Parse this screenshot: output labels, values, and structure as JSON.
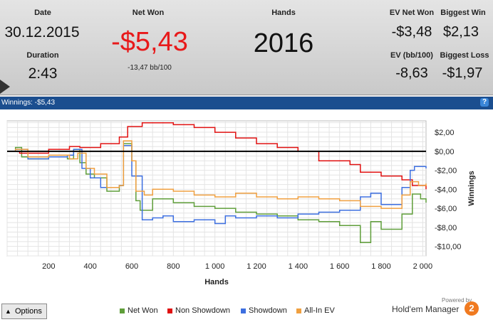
{
  "stats": {
    "date_label": "Date",
    "date_value": "30.12.2015",
    "duration_label": "Duration",
    "duration_value": "2:43",
    "net_won_label": "Net Won",
    "net_won_value": "-$5,43",
    "net_won_sub": "-13,47 bb/100",
    "hands_label": "Hands",
    "hands_value": "2016",
    "ev_net_won_label": "EV Net Won",
    "ev_net_won_value": "-$3,48",
    "biggest_win_label": "Biggest Win",
    "biggest_win_value": "$2,13",
    "ev_bb_label": "EV (bb/100)",
    "ev_bb_value": "-8,63",
    "biggest_loss_label": "Biggest Loss",
    "biggest_loss_value": "-$1,97"
  },
  "titlebar": {
    "text": "Winnings: -$5,43",
    "help": "?"
  },
  "options": {
    "label": "Options"
  },
  "brand": {
    "powered": "Powered by",
    "name": "Hold'em Manager",
    "badge": "2"
  },
  "colors": {
    "net_won": "#5f9e3a",
    "non_showdown": "#e01010",
    "showdown": "#3d6fe0",
    "all_in_ev": "#f0a040",
    "accent_red": "#e8191a"
  },
  "chart_data": {
    "type": "line",
    "xlabel": "Hands",
    "ylabel": "Winnings",
    "xlim": [
      0,
      2016
    ],
    "ylim": [
      -11,
      3.2
    ],
    "x_ticks": [
      200,
      400,
      600,
      800,
      1000,
      1200,
      1400,
      1600,
      1800,
      2000
    ],
    "x_tick_labels": [
      "200",
      "400",
      "600",
      "800",
      "1 000",
      "1 200",
      "1 400",
      "1 600",
      "1 800",
      "2 000"
    ],
    "y_ticks": [
      2,
      0,
      -2,
      -4,
      -6,
      -8,
      -10
    ],
    "y_tick_labels": [
      "$2,00",
      "$0,00",
      "-$2,00",
      "-$4,00",
      "-$6,00",
      "-$8,00",
      "-$10,00"
    ],
    "grid": true,
    "legend_position": "bottom",
    "series": [
      {
        "name": "Net Won",
        "color": "#5f9e3a",
        "x": [
          0,
          40,
          70,
          100,
          200,
          290,
          320,
          350,
          380,
          420,
          480,
          540,
          560,
          600,
          620,
          640,
          700,
          800,
          900,
          1000,
          1100,
          1200,
          1300,
          1400,
          1500,
          1600,
          1700,
          1750,
          1800,
          1900,
          1950,
          1990,
          2016
        ],
        "y": [
          0,
          0.4,
          -0.6,
          -0.8,
          -0.6,
          -0.8,
          0.2,
          -1.2,
          -2.4,
          -2.8,
          -4.2,
          -3.6,
          0.8,
          -1.0,
          -5.2,
          -6.2,
          -5.0,
          -5.4,
          -5.8,
          -6.0,
          -6.4,
          -6.6,
          -6.8,
          -7.2,
          -7.4,
          -7.8,
          -9.6,
          -7.4,
          -8.2,
          -6.6,
          -4.5,
          -5.0,
          -5.4
        ]
      },
      {
        "name": "Non Showdown",
        "color": "#e01010",
        "x": [
          0,
          60,
          200,
          300,
          350,
          450,
          540,
          580,
          650,
          800,
          900,
          1000,
          1100,
          1200,
          1300,
          1400,
          1500,
          1650,
          1700,
          1800,
          1900,
          1950,
          2016
        ],
        "y": [
          0,
          -0.2,
          0.2,
          0.5,
          0.4,
          0.8,
          1.5,
          2.6,
          3.0,
          2.8,
          2.5,
          2.0,
          1.4,
          0.8,
          0.4,
          0.0,
          -1.0,
          -1.4,
          -2.2,
          -2.6,
          -3.0,
          -3.6,
          -4.0
        ]
      },
      {
        "name": "Showdown",
        "color": "#3d6fe0",
        "x": [
          0,
          40,
          100,
          200,
          290,
          320,
          360,
          400,
          450,
          540,
          560,
          600,
          650,
          700,
          750,
          800,
          900,
          1000,
          1050,
          1100,
          1200,
          1300,
          1400,
          1500,
          1600,
          1700,
          1750,
          1800,
          1900,
          1940,
          1960,
          2016
        ],
        "y": [
          0,
          0.2,
          -0.8,
          -0.6,
          -0.4,
          0.2,
          -1.8,
          -2.8,
          -3.8,
          -3.6,
          0.6,
          -2.6,
          -7.2,
          -7.0,
          -6.8,
          -7.4,
          -7.2,
          -7.6,
          -6.8,
          -7.0,
          -6.8,
          -7.0,
          -6.6,
          -6.4,
          -6.2,
          -4.8,
          -4.4,
          -5.6,
          -3.8,
          -2.0,
          -1.6,
          -1.8
        ]
      },
      {
        "name": "All-In EV",
        "color": "#f0a040",
        "x": [
          0,
          40,
          100,
          200,
          300,
          340,
          380,
          420,
          480,
          540,
          560,
          600,
          620,
          660,
          700,
          800,
          900,
          1000,
          1100,
          1200,
          1300,
          1400,
          1500,
          1600,
          1700,
          1800,
          1900,
          1940,
          1980,
          2016
        ],
        "y": [
          0,
          0.2,
          -0.6,
          -0.4,
          -0.8,
          -0.2,
          -1.8,
          -2.4,
          -3.8,
          -3.6,
          1.1,
          -1.0,
          -4.2,
          -4.6,
          -4.0,
          -4.2,
          -4.6,
          -4.8,
          -4.4,
          -4.8,
          -5.0,
          -4.8,
          -5.0,
          -5.2,
          -5.8,
          -6.0,
          -4.6,
          -3.2,
          -3.6,
          -3.4
        ]
      }
    ],
    "hline": 0
  }
}
